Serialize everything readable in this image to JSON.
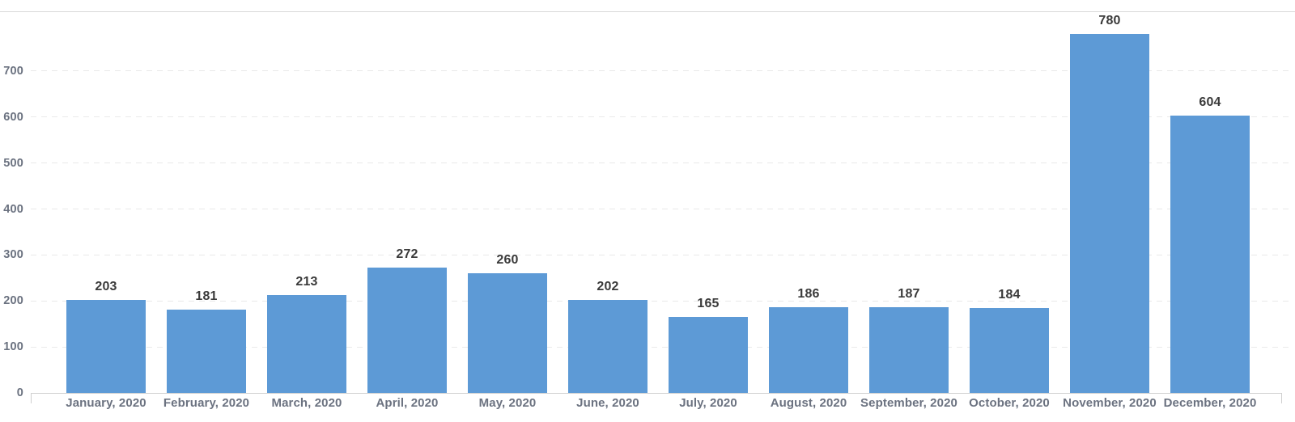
{
  "chart_data": {
    "type": "bar",
    "title": "",
    "xlabel": "",
    "ylabel": "",
    "categories": [
      "January, 2020",
      "February, 2020",
      "March, 2020",
      "April, 2020",
      "May, 2020",
      "June, 2020",
      "July, 2020",
      "August, 2020",
      "September, 2020",
      "October, 2020",
      "November, 2020",
      "December, 2020"
    ],
    "values": [
      203,
      181,
      213,
      272,
      260,
      202,
      165,
      186,
      187,
      184,
      780,
      604
    ],
    "value_labels": [
      "203",
      "181",
      "213",
      "272",
      "260",
      "202",
      "165",
      "186",
      "187",
      "184",
      "780",
      "604"
    ],
    "yticks": [
      0,
      100,
      200,
      300,
      400,
      500,
      600,
      700
    ],
    "ylim": [
      0,
      830
    ],
    "grid": "horizontal-dashed",
    "legend": "none",
    "colors": {
      "bar": "#5d9ad6",
      "value_text": "#3a3a3a",
      "axis_text": "#6b7280",
      "gridline": "#e9e9e9",
      "axis_line": "#cfcfcf",
      "top_border": "#d9d9d9",
      "background": "#ffffff"
    }
  }
}
